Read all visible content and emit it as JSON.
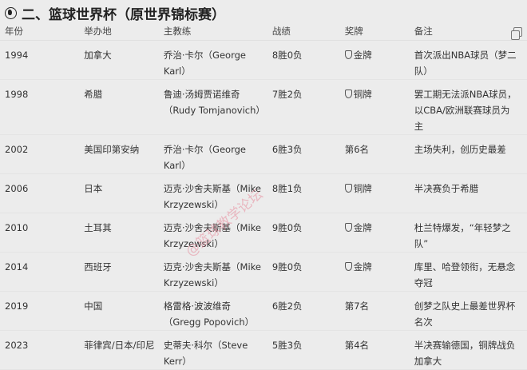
{
  "title": "二、篮球世界杯（原世界锦标赛）",
  "title_icon": "globe-icon",
  "copy_icon": "copy-icon",
  "watermark": "@篮球教学论坛",
  "columns": [
    "年份",
    "举办地",
    "主教练",
    "战绩",
    "奖牌",
    "备注"
  ],
  "rows": [
    {
      "year": "1994",
      "host": "加拿大",
      "coach": "乔治·卡尔（George Karl）",
      "record": "8胜0负",
      "medal": "金牌",
      "has_medal_icon": true,
      "note": "首次派出NBA球员（梦二队）"
    },
    {
      "year": "1998",
      "host": "希腊",
      "coach": "鲁迪·汤姆贾诺维奇（Rudy Tomjanovich）",
      "record": "7胜2负",
      "medal": "铜牌",
      "has_medal_icon": true,
      "note": "罢工期无法派NBA球员，以CBA/欧洲联赛球员为主"
    },
    {
      "year": "2002",
      "host": "美国印第安纳",
      "coach": "乔治·卡尔（George Karl）",
      "record": "6胜3负",
      "medal": "第6名",
      "has_medal_icon": false,
      "note": "主场失利，创历史最差"
    },
    {
      "year": "2006",
      "host": "日本",
      "coach": "迈克·沙舍夫斯基（Mike Krzyzewski）",
      "record": "8胜1负",
      "medal": "铜牌",
      "has_medal_icon": true,
      "note": "半决赛负于希腊"
    },
    {
      "year": "2010",
      "host": "土耳其",
      "coach": "迈克·沙舍夫斯基（Mike Krzyzewski）",
      "record": "9胜0负",
      "medal": "金牌",
      "has_medal_icon": true,
      "note": "杜兰特爆发，“年轻梦之队”"
    },
    {
      "year": "2014",
      "host": "西班牙",
      "coach": "迈克·沙舍夫斯基（Mike Krzyzewski）",
      "record": "9胜0负",
      "medal": "金牌",
      "has_medal_icon": true,
      "note": "库里、哈登领衔，无悬念夺冠"
    },
    {
      "year": "2019",
      "host": "中国",
      "coach": "格雷格·波波维奇（Gregg Popovich）",
      "record": "6胜2负",
      "medal": "第7名",
      "has_medal_icon": false,
      "note": "创梦之队史上最差世界杯名次"
    },
    {
      "year": "2023",
      "host": "菲律宾/日本/印尼",
      "coach": "史蒂夫·科尔（Steve Kerr）",
      "record": "5胜3负",
      "medal": "第4名",
      "has_medal_icon": false,
      "note": "半决赛输德国，铜牌战负加拿大"
    }
  ]
}
